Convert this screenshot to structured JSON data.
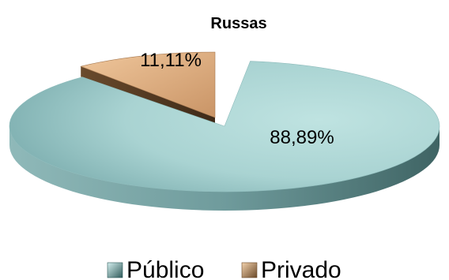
{
  "chart_data": {
    "type": "pie",
    "title": "Russas",
    "three_d": true,
    "exploded_slice": "Privado",
    "categories": [
      "Público",
      "Privado"
    ],
    "values": [
      88.89,
      11.11
    ],
    "data_labels": [
      "88,89%",
      "11,11%"
    ],
    "legend_position": "bottom",
    "colors": {
      "Público": "#b6dede",
      "Privado": "#e0b48a"
    }
  }
}
